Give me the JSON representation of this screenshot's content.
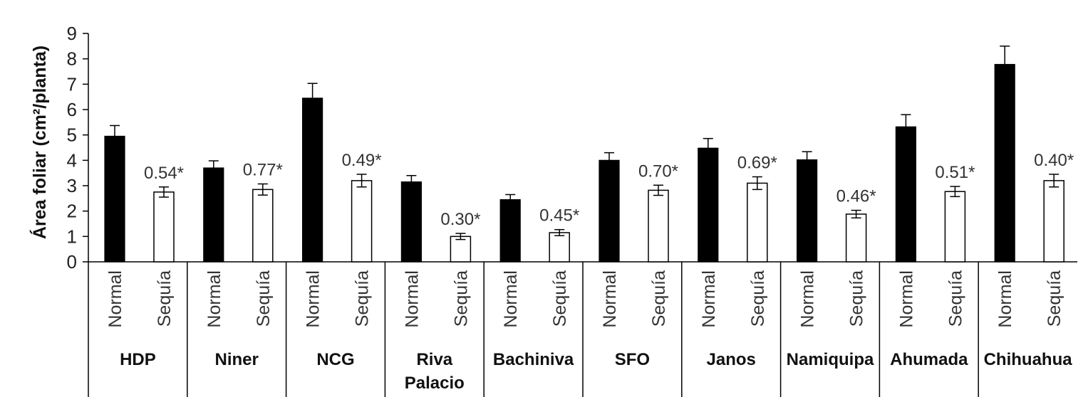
{
  "chart_data": {
    "type": "bar",
    "title": "",
    "xlabel": "",
    "ylabel": "Área foliar (cm²/planta)",
    "ylim": [
      0,
      9
    ],
    "yticks": [
      "0",
      "1",
      "2",
      "3",
      "4",
      "5",
      "6",
      "7",
      "8",
      "9"
    ],
    "grid": false,
    "conditions": [
      "Normal",
      "Sequía"
    ],
    "bar_colors": {
      "Normal": "#000000",
      "Sequía": "#ffffff"
    },
    "groups": [
      {
        "name": [
          "HDP"
        ],
        "normal": 4.95,
        "normal_err": 0.42,
        "sequia": 2.75,
        "sequia_err": 0.2,
        "label": "0.54*"
      },
      {
        "name": [
          "Niner"
        ],
        "normal": 3.7,
        "normal_err": 0.28,
        "sequia": 2.85,
        "sequia_err": 0.22,
        "label": "0.77*"
      },
      {
        "name": [
          "NCG"
        ],
        "normal": 6.45,
        "normal_err": 0.58,
        "sequia": 3.2,
        "sequia_err": 0.25,
        "label": "0.49*"
      },
      {
        "name": [
          "Riva",
          "Palacio"
        ],
        "normal": 3.15,
        "normal_err": 0.25,
        "sequia": 1.0,
        "sequia_err": 0.12,
        "label": "0.30*"
      },
      {
        "name": [
          "Bachiniva"
        ],
        "normal": 2.45,
        "normal_err": 0.2,
        "sequia": 1.15,
        "sequia_err": 0.12,
        "label": "0.45*"
      },
      {
        "name": [
          "SFO"
        ],
        "normal": 4.0,
        "normal_err": 0.3,
        "sequia": 2.82,
        "sequia_err": 0.2,
        "label": "0.70*"
      },
      {
        "name": [
          "Janos"
        ],
        "normal": 4.48,
        "normal_err": 0.38,
        "sequia": 3.1,
        "sequia_err": 0.25,
        "label": "0.69*"
      },
      {
        "name": [
          "Namiquipa"
        ],
        "normal": 4.02,
        "normal_err": 0.32,
        "sequia": 1.88,
        "sequia_err": 0.15,
        "label": "0.46*"
      },
      {
        "name": [
          "Ahumada"
        ],
        "normal": 5.32,
        "normal_err": 0.48,
        "sequia": 2.77,
        "sequia_err": 0.2,
        "label": "0.51*"
      },
      {
        "name": [
          "Chihuahua"
        ],
        "normal": 7.78,
        "normal_err": 0.72,
        "sequia": 3.2,
        "sequia_err": 0.25,
        "label": "0.40*"
      }
    ]
  }
}
